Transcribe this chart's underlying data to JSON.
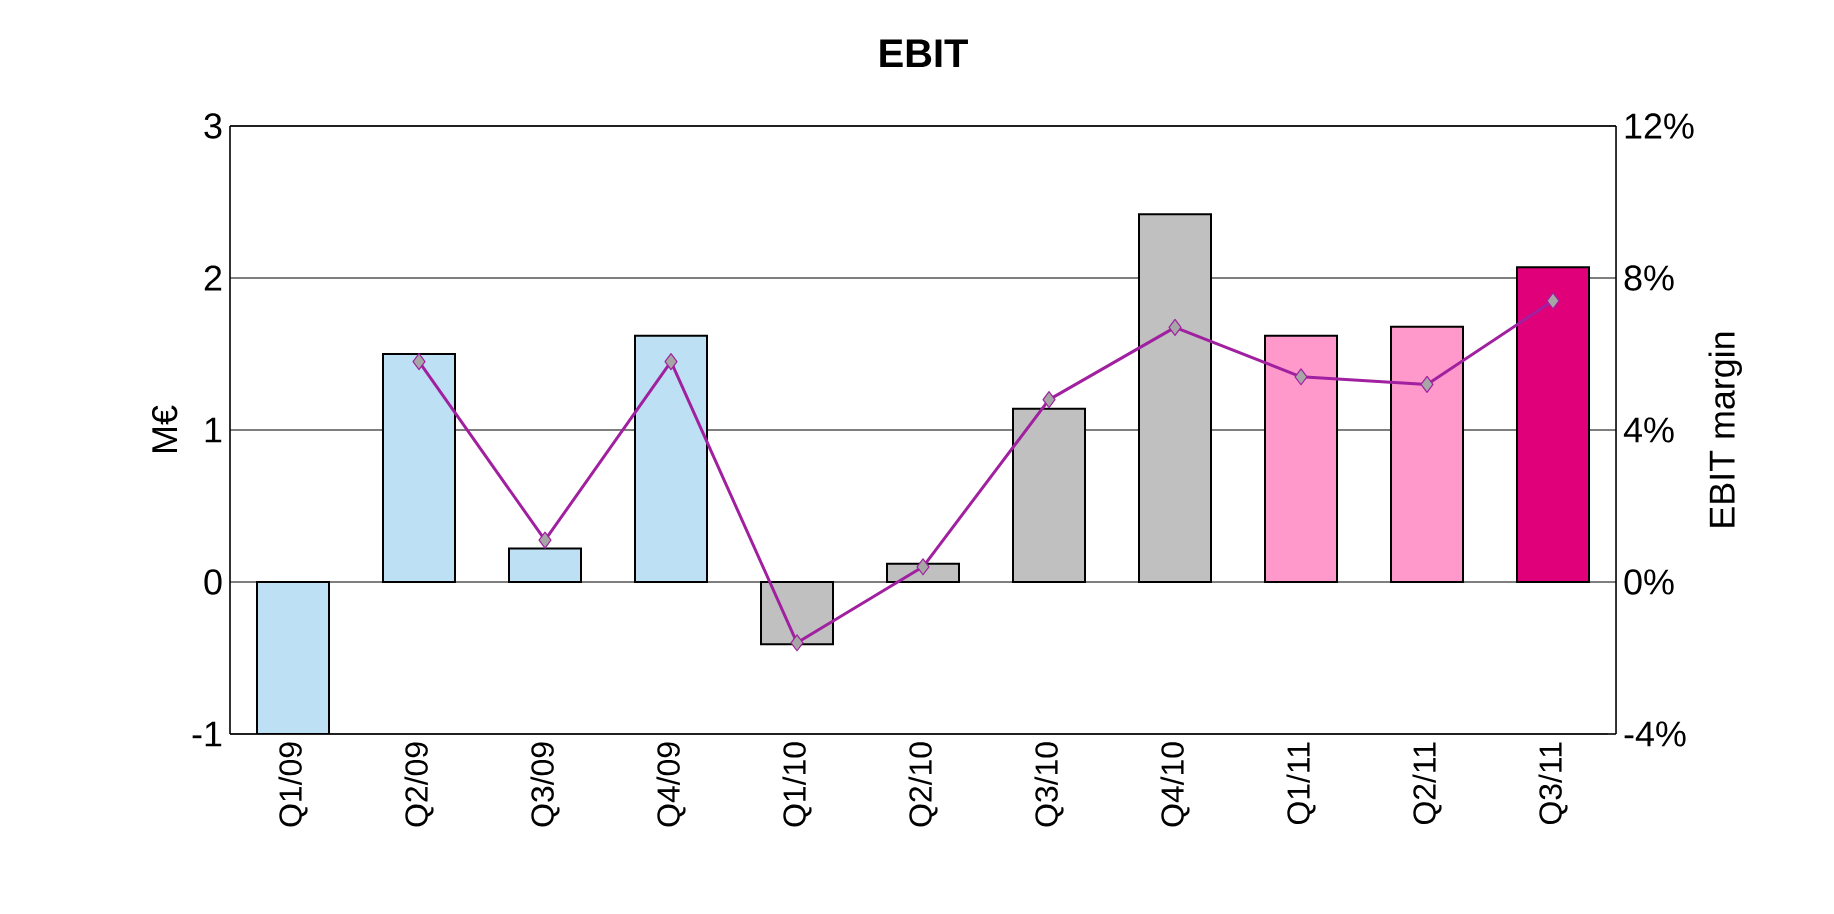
{
  "chart_data": {
    "type": "bar",
    "title": "EBIT",
    "ylabel": "M€",
    "y2label": "EBIT margin",
    "categories": [
      "Q1/09",
      "Q2/09",
      "Q3/09",
      "Q4/09",
      "Q1/10",
      "Q2/10",
      "Q3/10",
      "Q4/10",
      "Q1/11",
      "Q2/11",
      "Q3/11"
    ],
    "series": [
      {
        "values": [
          -1,
          1.5,
          0.22,
          1.62,
          -0.41,
          0.12,
          1.14,
          2.42,
          1.62,
          1.68,
          2.07
        ],
        "colors": [
          "#bde0f5",
          "#bde0f5",
          "#bde0f5",
          "#bde0f5",
          "#c0c0c0",
          "#c0c0c0",
          "#c0c0c0",
          "#c0c0c0",
          "#ff99cc",
          "#ff99cc",
          "#e0007a"
        ]
      },
      {
        "type": "line",
        "axis": "y2",
        "color": "#a020a0",
        "marker": "diamond",
        "values": [
          null,
          5.8,
          1.1,
          5.8,
          -1.6,
          0.4,
          4.8,
          6.7,
          5.4,
          5.2,
          7.4
        ]
      }
    ],
    "ylim": [
      -1,
      3
    ],
    "yticks": [
      -1,
      0,
      1,
      2,
      3
    ],
    "y2lim": [
      -4,
      12
    ],
    "y2ticks": [
      {
        "value": -4,
        "label": "-4%"
      },
      {
        "value": 0,
        "label": "0%"
      },
      {
        "value": 4,
        "label": "4%"
      },
      {
        "value": 8,
        "label": "8%"
      },
      {
        "value": 12,
        "label": "12%"
      }
    ],
    "grid": "y"
  }
}
